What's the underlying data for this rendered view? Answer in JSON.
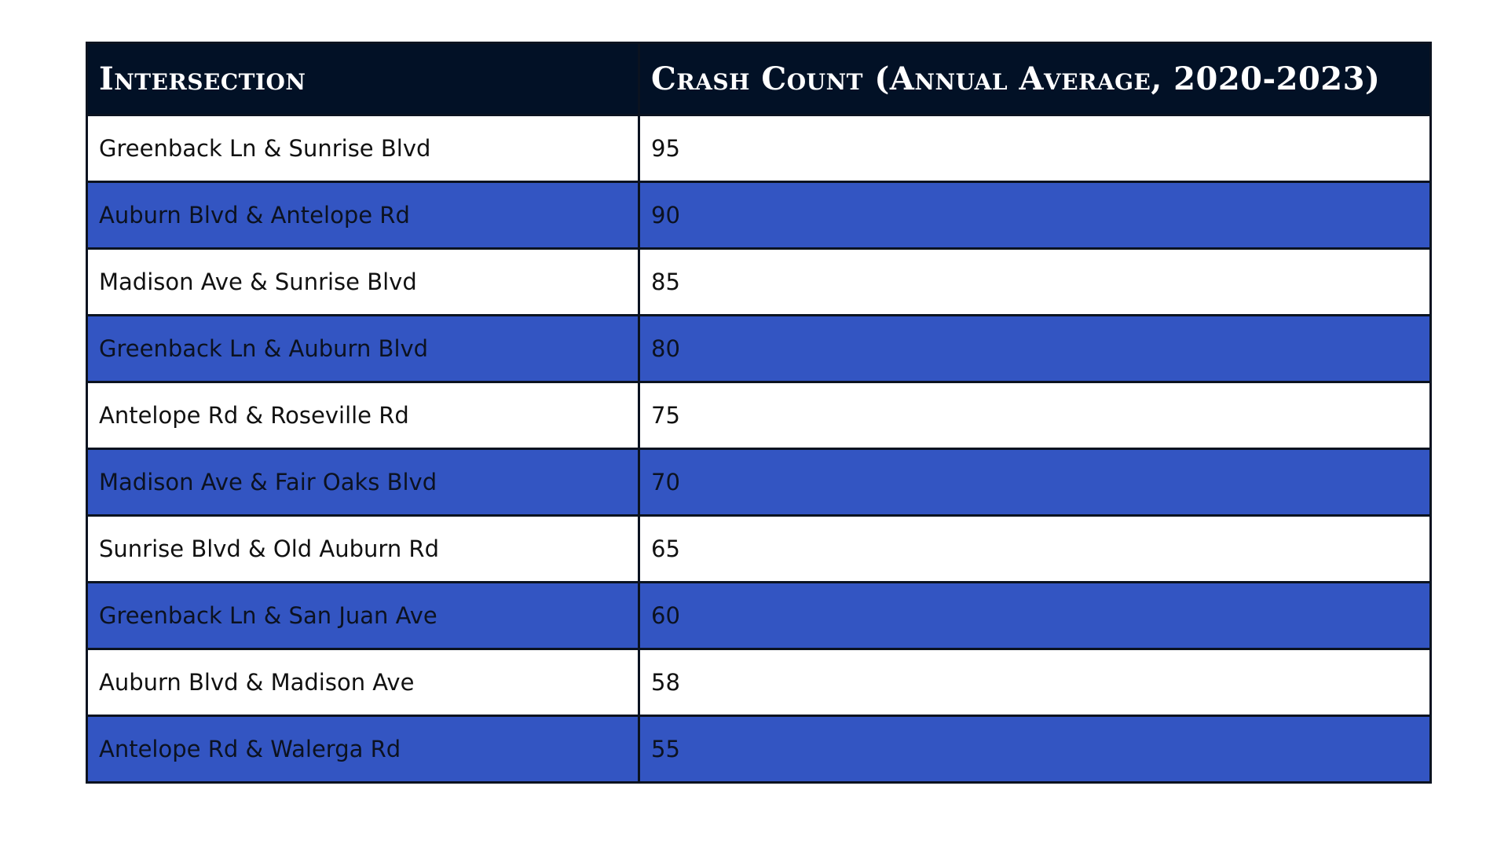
{
  "table": {
    "headers": [
      "Intersection",
      "Crash Count (Annual Average, 2020-2023)"
    ],
    "rows": [
      {
        "intersection": "Greenback Ln & Sunrise Blvd",
        "count": "95"
      },
      {
        "intersection": "Auburn Blvd & Antelope Rd",
        "count": "90"
      },
      {
        "intersection": "Madison Ave & Sunrise Blvd",
        "count": "85"
      },
      {
        "intersection": "Greenback Ln & Auburn Blvd",
        "count": "80"
      },
      {
        "intersection": "Antelope Rd & Roseville Rd",
        "count": "75"
      },
      {
        "intersection": "Madison Ave & Fair Oaks Blvd",
        "count": "70"
      },
      {
        "intersection": "Sunrise Blvd & Old Auburn Rd",
        "count": "65"
      },
      {
        "intersection": "Greenback Ln & San Juan Ave",
        "count": "60"
      },
      {
        "intersection": "Auburn Blvd & Madison Ave",
        "count": "58"
      },
      {
        "intersection": "Antelope Rd & Walerga Rd",
        "count": "55"
      }
    ]
  },
  "colors": {
    "header_bg": "#021126",
    "header_text": "#ffffff",
    "row_stripe": "#3355c2",
    "row_plain": "#ffffff",
    "border": "#0b1320"
  }
}
